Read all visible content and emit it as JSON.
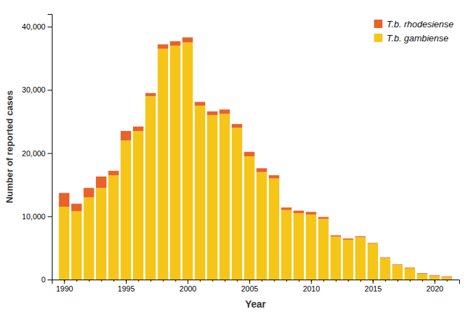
{
  "chart_data": {
    "type": "bar",
    "stacked": true,
    "grid": false,
    "legend": "upper-right",
    "xlabel": "Year",
    "ylabel": "Number of reported cases",
    "x": [
      1990,
      1991,
      1992,
      1993,
      1994,
      1995,
      1996,
      1997,
      1998,
      1999,
      2000,
      2001,
      2002,
      2003,
      2004,
      2005,
      2006,
      2007,
      2008,
      2009,
      2010,
      2011,
      2012,
      2013,
      2014,
      2015,
      2016,
      2017,
      2018,
      2019,
      2020,
      2021
    ],
    "xlim": [
      1989,
      2022
    ],
    "xticks": [
      1990,
      1995,
      2000,
      2005,
      2010,
      2015,
      2020
    ],
    "ylim": [
      0,
      42000
    ],
    "yticks": [
      0,
      {
        "value": 10000,
        "label": "10,000"
      },
      {
        "value": 20000,
        "label": "20,000"
      },
      {
        "value": 30000,
        "label": "30,000"
      },
      {
        "value": 40000,
        "label": "40,000"
      }
    ],
    "series": [
      {
        "name": "T.b. gambiense",
        "color": "#F5C518",
        "values": [
          11500,
          10800,
          13000,
          14500,
          16500,
          22000,
          23500,
          29000,
          36500,
          37000,
          37500,
          27500,
          26000,
          26200,
          24000,
          19500,
          17000,
          16000,
          11000,
          10500,
          10300,
          9600,
          6800,
          6300,
          6700,
          5700,
          3400,
          2300,
          1800,
          900,
          600,
          400
        ]
      },
      {
        "name": "T.b. rhodesiense",
        "color": "#E8622A",
        "values": [
          2200,
          1200,
          1500,
          1800,
          700,
          1500,
          700,
          500,
          700,
          700,
          800,
          600,
          600,
          700,
          600,
          700,
          600,
          500,
          400,
          400,
          400,
          300,
          200,
          200,
          150,
          100,
          100,
          100,
          100,
          100,
          100,
          100
        ]
      }
    ]
  }
}
